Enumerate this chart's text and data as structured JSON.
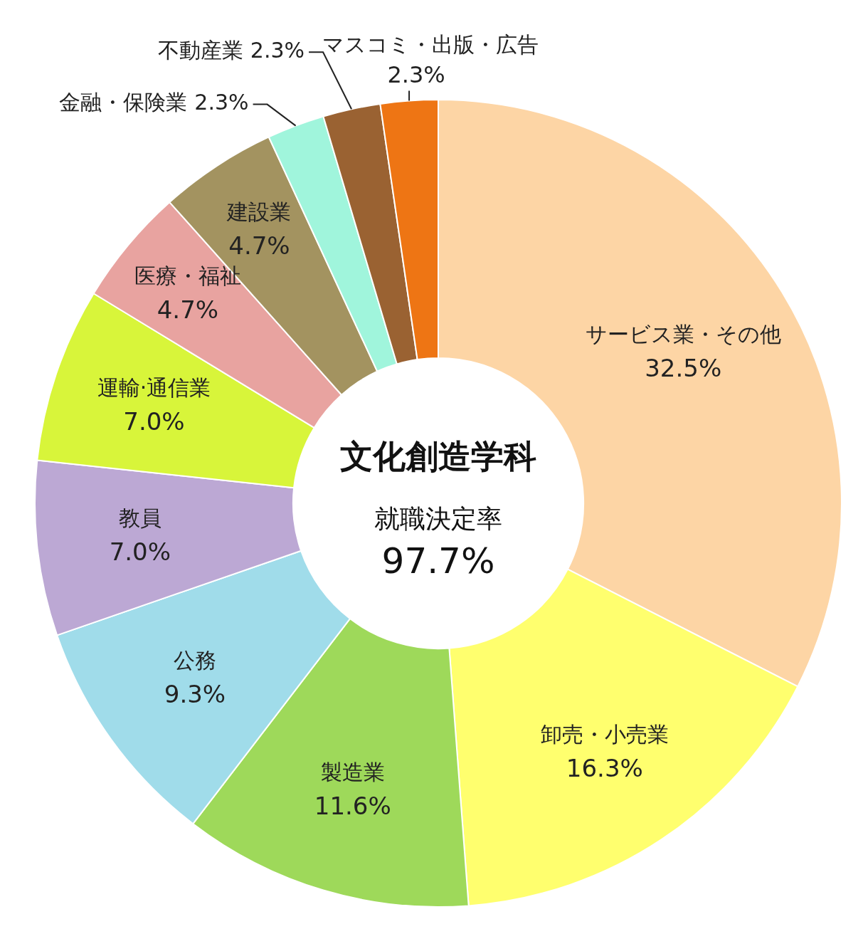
{
  "chart_data": {
    "type": "donut",
    "title": "文化創造学科",
    "subtitle": "就職決定率",
    "annotations": [
      "97.7%"
    ],
    "categories": [
      "サービス業・その他",
      "卸売・小売業",
      "製造業",
      "公務",
      "教員",
      "運輸·通信業",
      "医療・福祉",
      "建設業",
      "金融・保険業",
      "不動産業",
      "マスコミ・出版・広告"
    ],
    "values": [
      32.5,
      16.3,
      11.6,
      9.3,
      7.0,
      7.0,
      4.7,
      4.7,
      2.3,
      2.3,
      2.3
    ],
    "value_labels": [
      "32.5%",
      "16.3%",
      "11.6%",
      "9.3%",
      "7.0%",
      "7.0%",
      "4.7%",
      "4.7%",
      "2.3%",
      "2.3%",
      "2.3%"
    ],
    "colors": [
      "#fdd5a5",
      "#ffff6e",
      "#9ed95a",
      "#a0dcea",
      "#bca8d4",
      "#d8f53a",
      "#e8a3a0",
      "#a39360",
      "#a0f5dc",
      "#9a6232",
      "#ee7514"
    ],
    "legend": false
  }
}
